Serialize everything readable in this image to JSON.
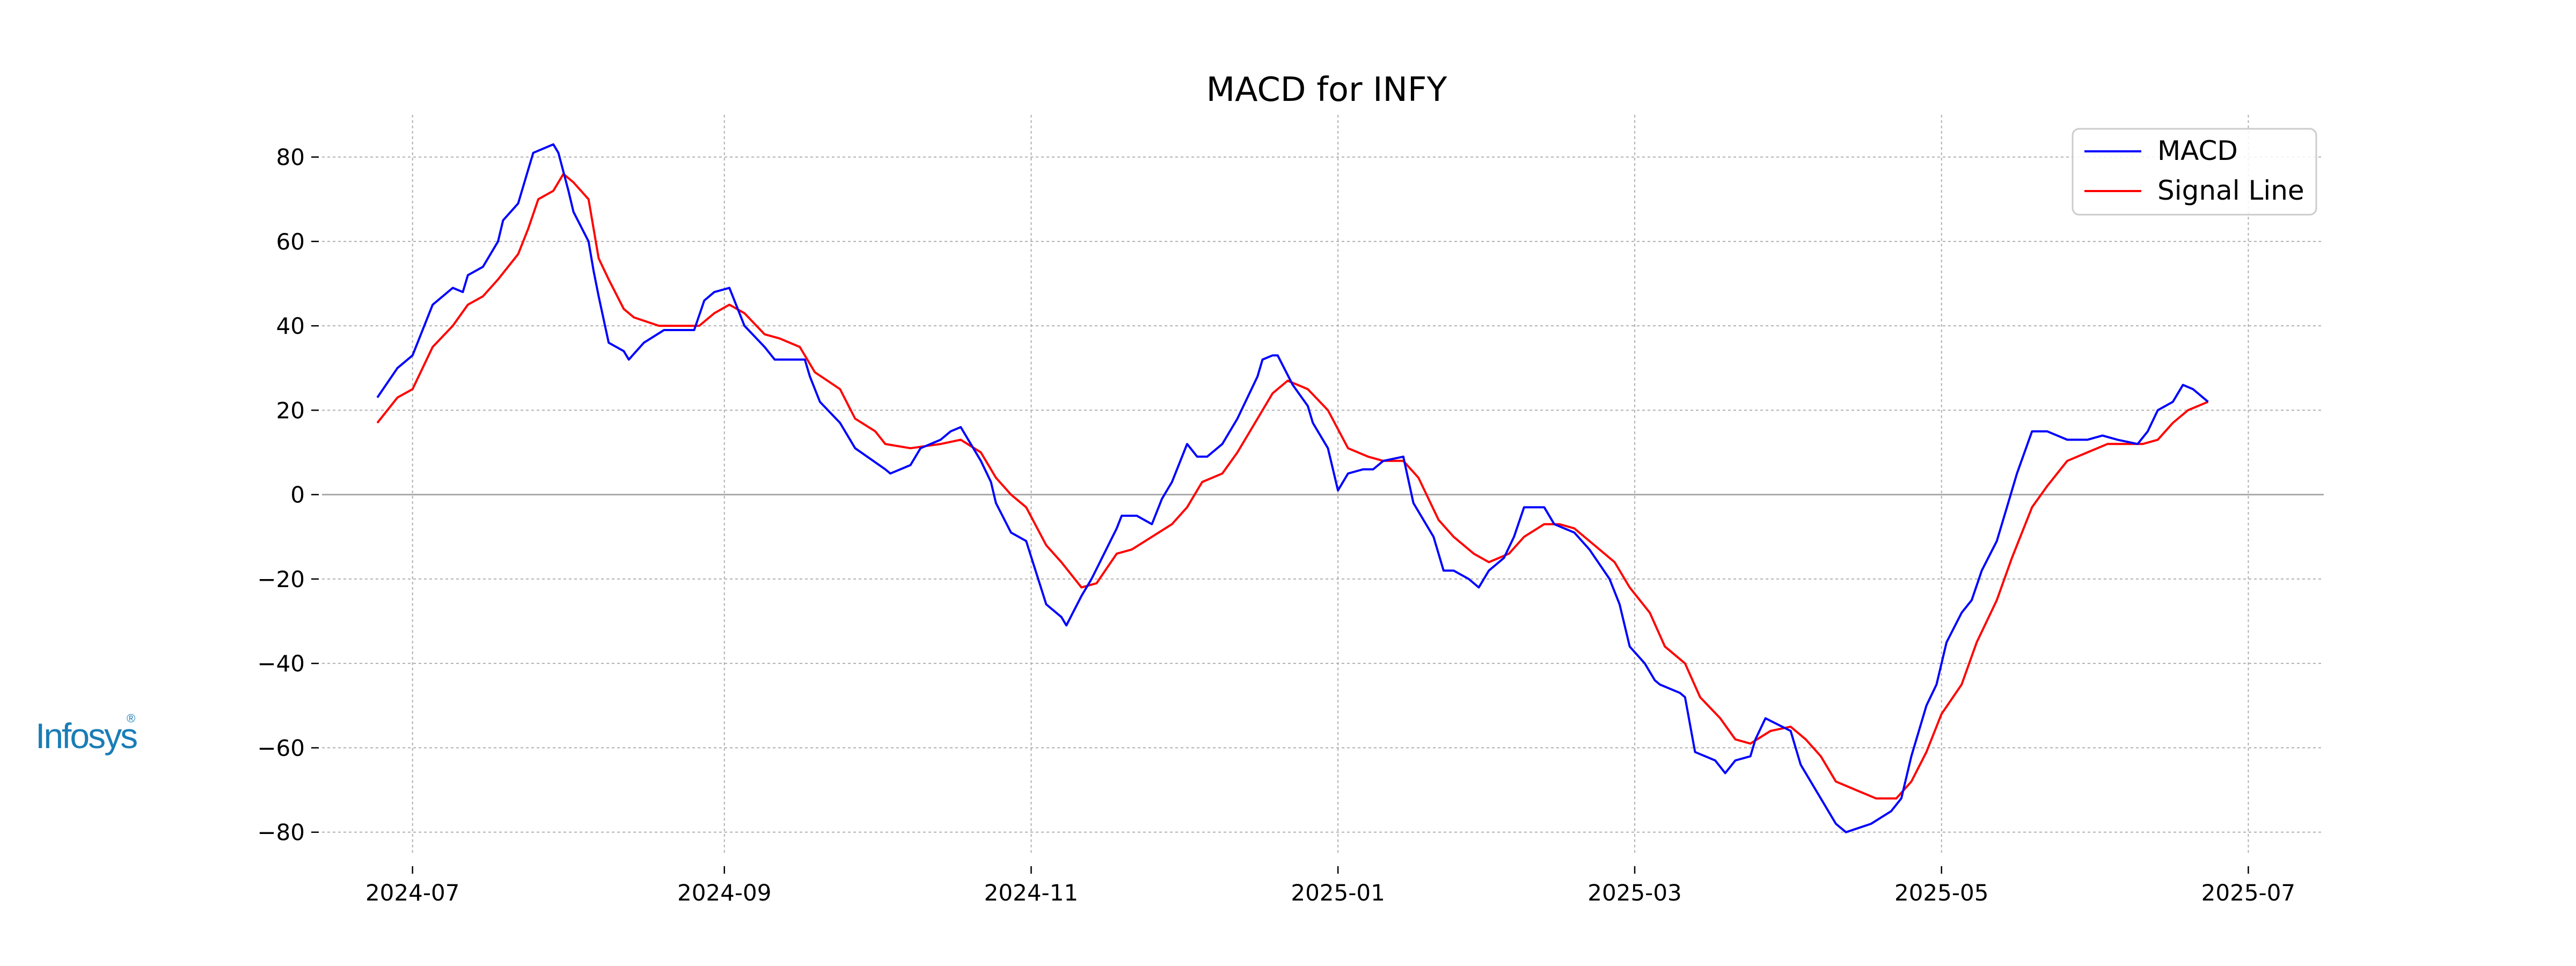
{
  "chart_data": {
    "type": "line",
    "title": "MACD for INFY",
    "xlabel": "",
    "ylabel": "",
    "x_axis": "date",
    "xlim": [
      "2024-06-13",
      "2025-07-16"
    ],
    "ylim": [
      -85,
      90
    ],
    "x_ticks": [
      "2024-07-01",
      "2024-09-01",
      "2024-11-01",
      "2025-01-01",
      "2025-03-01",
      "2025-05-01",
      "2025-07-01"
    ],
    "x_tick_labels": [
      "2024-07",
      "2024-09",
      "2024-11",
      "2025-01",
      "2025-03",
      "2025-05",
      "2025-07"
    ],
    "y_ticks": [
      80,
      60,
      40,
      20,
      0,
      -20,
      -40,
      -60,
      -80
    ],
    "y_tick_labels": [
      "80",
      "60",
      "40",
      "20",
      "0",
      "−20",
      "−40",
      "−60",
      "−80"
    ],
    "grid": true,
    "zero_line": true,
    "legend_position": "top-right",
    "series": [
      {
        "name": "MACD",
        "color": "#0000ff",
        "points": [
          [
            "2024-06-24",
            23
          ],
          [
            "2024-06-28",
            30
          ],
          [
            "2024-07-01",
            33
          ],
          [
            "2024-07-05",
            45
          ],
          [
            "2024-07-09",
            49
          ],
          [
            "2024-07-11",
            48
          ],
          [
            "2024-07-12",
            52
          ],
          [
            "2024-07-15",
            54
          ],
          [
            "2024-07-18",
            60
          ],
          [
            "2024-07-19",
            65
          ],
          [
            "2024-07-22",
            69
          ],
          [
            "2024-07-24",
            77
          ],
          [
            "2024-07-25",
            81
          ],
          [
            "2024-07-29",
            83
          ],
          [
            "2024-07-30",
            81
          ],
          [
            "2024-08-01",
            72
          ],
          [
            "2024-08-02",
            67
          ],
          [
            "2024-08-05",
            60
          ],
          [
            "2024-08-06",
            53
          ],
          [
            "2024-08-07",
            47
          ],
          [
            "2024-08-09",
            36
          ],
          [
            "2024-08-12",
            34
          ],
          [
            "2024-08-13",
            32
          ],
          [
            "2024-08-16",
            36
          ],
          [
            "2024-08-20",
            39
          ],
          [
            "2024-08-22",
            39
          ],
          [
            "2024-08-26",
            39
          ],
          [
            "2024-08-28",
            46
          ],
          [
            "2024-08-30",
            48
          ],
          [
            "2024-09-02",
            49
          ],
          [
            "2024-09-03",
            46
          ],
          [
            "2024-09-05",
            40
          ],
          [
            "2024-09-09",
            35
          ],
          [
            "2024-09-11",
            32
          ],
          [
            "2024-09-13",
            32
          ],
          [
            "2024-09-17",
            32
          ],
          [
            "2024-09-18",
            28
          ],
          [
            "2024-09-20",
            22
          ],
          [
            "2024-09-24",
            17
          ],
          [
            "2024-09-27",
            11
          ],
          [
            "2024-10-03",
            6
          ],
          [
            "2024-10-04",
            5
          ],
          [
            "2024-10-08",
            7
          ],
          [
            "2024-10-10",
            11
          ],
          [
            "2024-10-14",
            13
          ],
          [
            "2024-10-16",
            15
          ],
          [
            "2024-10-18",
            16
          ],
          [
            "2024-10-22",
            8
          ],
          [
            "2024-10-24",
            3
          ],
          [
            "2024-10-25",
            -2
          ],
          [
            "2024-10-28",
            -9
          ],
          [
            "2024-10-31",
            -11
          ],
          [
            "2024-11-04",
            -26
          ],
          [
            "2024-11-07",
            -29
          ],
          [
            "2024-11-08",
            -31
          ],
          [
            "2024-11-11",
            -24
          ],
          [
            "2024-11-13",
            -20
          ],
          [
            "2024-11-18",
            -8
          ],
          [
            "2024-11-19",
            -5
          ],
          [
            "2024-11-22",
            -5
          ],
          [
            "2024-11-25",
            -7
          ],
          [
            "2024-11-27",
            -1
          ],
          [
            "2024-11-29",
            3
          ],
          [
            "2024-12-02",
            12
          ],
          [
            "2024-12-04",
            9
          ],
          [
            "2024-12-06",
            9
          ],
          [
            "2024-12-09",
            12
          ],
          [
            "2024-12-12",
            18
          ],
          [
            "2024-12-16",
            28
          ],
          [
            "2024-12-17",
            32
          ],
          [
            "2024-12-19",
            33
          ],
          [
            "2024-12-20",
            33
          ],
          [
            "2024-12-23",
            26
          ],
          [
            "2024-12-26",
            21
          ],
          [
            "2024-12-27",
            17
          ],
          [
            "2024-12-30",
            11
          ],
          [
            "2025-01-01",
            1
          ],
          [
            "2025-01-03",
            5
          ],
          [
            "2025-01-06",
            6
          ],
          [
            "2025-01-08",
            6
          ],
          [
            "2025-01-10",
            8
          ],
          [
            "2025-01-14",
            9
          ],
          [
            "2025-01-16",
            -2
          ],
          [
            "2025-01-20",
            -10
          ],
          [
            "2025-01-22",
            -18
          ],
          [
            "2025-01-24",
            -18
          ],
          [
            "2025-01-27",
            -20
          ],
          [
            "2025-01-29",
            -22
          ],
          [
            "2025-01-31",
            -18
          ],
          [
            "2025-02-03",
            -15
          ],
          [
            "2025-02-05",
            -10
          ],
          [
            "2025-02-07",
            -3
          ],
          [
            "2025-02-11",
            -3
          ],
          [
            "2025-02-13",
            -7
          ],
          [
            "2025-02-17",
            -9
          ],
          [
            "2025-02-20",
            -13
          ],
          [
            "2025-02-24",
            -20
          ],
          [
            "2025-02-26",
            -26
          ],
          [
            "2025-02-28",
            -36
          ],
          [
            "2025-03-03",
            -40
          ],
          [
            "2025-03-05",
            -44
          ],
          [
            "2025-03-06",
            -45
          ],
          [
            "2025-03-10",
            -47
          ],
          [
            "2025-03-11",
            -48
          ],
          [
            "2025-03-13",
            -61
          ],
          [
            "2025-03-17",
            -63
          ],
          [
            "2025-03-19",
            -66
          ],
          [
            "2025-03-21",
            -63
          ],
          [
            "2025-03-24",
            -62
          ],
          [
            "2025-03-25",
            -58
          ],
          [
            "2025-03-27",
            -53
          ],
          [
            "2025-04-01",
            -56
          ],
          [
            "2025-04-03",
            -64
          ],
          [
            "2025-04-07",
            -72
          ],
          [
            "2025-04-10",
            -78
          ],
          [
            "2025-04-12",
            -80
          ],
          [
            "2025-04-17",
            -78
          ],
          [
            "2025-04-21",
            -75
          ],
          [
            "2025-04-23",
            -72
          ],
          [
            "2025-04-25",
            -62
          ],
          [
            "2025-04-28",
            -50
          ],
          [
            "2025-04-30",
            -45
          ],
          [
            "2025-05-02",
            -35
          ],
          [
            "2025-05-05",
            -28
          ],
          [
            "2025-05-07",
            -25
          ],
          [
            "2025-05-09",
            -18
          ],
          [
            "2025-05-12",
            -11
          ],
          [
            "2025-05-14",
            -3
          ],
          [
            "2025-05-16",
            5
          ],
          [
            "2025-05-19",
            15
          ],
          [
            "2025-05-22",
            15
          ],
          [
            "2025-05-26",
            13
          ],
          [
            "2025-05-30",
            13
          ],
          [
            "2025-06-02",
            14
          ],
          [
            "2025-06-05",
            13
          ],
          [
            "2025-06-09",
            12
          ],
          [
            "2025-06-11",
            15
          ],
          [
            "2025-06-13",
            20
          ],
          [
            "2025-06-16",
            22
          ],
          [
            "2025-06-18",
            26
          ],
          [
            "2025-06-20",
            25
          ],
          [
            "2025-06-23",
            22
          ]
        ]
      },
      {
        "name": "Signal Line",
        "color": "#ff0000",
        "points": [
          [
            "2024-06-24",
            17
          ],
          [
            "2024-06-28",
            23
          ],
          [
            "2024-07-01",
            25
          ],
          [
            "2024-07-05",
            35
          ],
          [
            "2024-07-09",
            40
          ],
          [
            "2024-07-12",
            45
          ],
          [
            "2024-07-15",
            47
          ],
          [
            "2024-07-18",
            51
          ],
          [
            "2024-07-22",
            57
          ],
          [
            "2024-07-24",
            63
          ],
          [
            "2024-07-26",
            70
          ],
          [
            "2024-07-29",
            72
          ],
          [
            "2024-07-31",
            76
          ],
          [
            "2024-08-02",
            74
          ],
          [
            "2024-08-05",
            70
          ],
          [
            "2024-08-07",
            56
          ],
          [
            "2024-08-09",
            51
          ],
          [
            "2024-08-12",
            44
          ],
          [
            "2024-08-14",
            42
          ],
          [
            "2024-08-19",
            40
          ],
          [
            "2024-08-23",
            40
          ],
          [
            "2024-08-27",
            40
          ],
          [
            "2024-08-30",
            43
          ],
          [
            "2024-09-02",
            45
          ],
          [
            "2024-09-05",
            43
          ],
          [
            "2024-09-09",
            38
          ],
          [
            "2024-09-12",
            37
          ],
          [
            "2024-09-16",
            35
          ],
          [
            "2024-09-19",
            29
          ],
          [
            "2024-09-24",
            25
          ],
          [
            "2024-09-27",
            18
          ],
          [
            "2024-10-01",
            15
          ],
          [
            "2024-10-03",
            12
          ],
          [
            "2024-10-08",
            11
          ],
          [
            "2024-10-14",
            12
          ],
          [
            "2024-10-18",
            13
          ],
          [
            "2024-10-22",
            10
          ],
          [
            "2024-10-25",
            4
          ],
          [
            "2024-10-28",
            0
          ],
          [
            "2024-10-31",
            -3
          ],
          [
            "2024-11-04",
            -12
          ],
          [
            "2024-11-07",
            -16
          ],
          [
            "2024-11-11",
            -22
          ],
          [
            "2024-11-14",
            -21
          ],
          [
            "2024-11-18",
            -14
          ],
          [
            "2024-11-21",
            -13
          ],
          [
            "2024-11-25",
            -10
          ],
          [
            "2024-11-29",
            -7
          ],
          [
            "2024-12-02",
            -3
          ],
          [
            "2024-12-05",
            3
          ],
          [
            "2024-12-09",
            5
          ],
          [
            "2024-12-12",
            10
          ],
          [
            "2024-12-16",
            18
          ],
          [
            "2024-12-19",
            24
          ],
          [
            "2024-12-22",
            27
          ],
          [
            "2024-12-26",
            25
          ],
          [
            "2024-12-30",
            20
          ],
          [
            "2025-01-03",
            11
          ],
          [
            "2025-01-07",
            9
          ],
          [
            "2025-01-10",
            8
          ],
          [
            "2025-01-14",
            8
          ],
          [
            "2025-01-17",
            4
          ],
          [
            "2025-01-21",
            -6
          ],
          [
            "2025-01-24",
            -10
          ],
          [
            "2025-01-28",
            -14
          ],
          [
            "2025-01-31",
            -16
          ],
          [
            "2025-02-04",
            -14
          ],
          [
            "2025-02-07",
            -10
          ],
          [
            "2025-02-11",
            -7
          ],
          [
            "2025-02-14",
            -7
          ],
          [
            "2025-02-17",
            -8
          ],
          [
            "2025-02-21",
            -12
          ],
          [
            "2025-02-25",
            -16
          ],
          [
            "2025-02-28",
            -22
          ],
          [
            "2025-03-04",
            -28
          ],
          [
            "2025-03-07",
            -36
          ],
          [
            "2025-03-11",
            -40
          ],
          [
            "2025-03-14",
            -48
          ],
          [
            "2025-03-18",
            -53
          ],
          [
            "2025-03-21",
            -58
          ],
          [
            "2025-03-24",
            -59
          ],
          [
            "2025-03-28",
            -56
          ],
          [
            "2025-04-01",
            -55
          ],
          [
            "2025-04-04",
            -58
          ],
          [
            "2025-04-07",
            -62
          ],
          [
            "2025-04-10",
            -68
          ],
          [
            "2025-04-14",
            -70
          ],
          [
            "2025-04-18",
            -72
          ],
          [
            "2025-04-22",
            -72
          ],
          [
            "2025-04-25",
            -68
          ],
          [
            "2025-04-28",
            -61
          ],
          [
            "2025-05-01",
            -52
          ],
          [
            "2025-05-05",
            -45
          ],
          [
            "2025-05-08",
            -35
          ],
          [
            "2025-05-12",
            -25
          ],
          [
            "2025-05-15",
            -15
          ],
          [
            "2025-05-19",
            -3
          ],
          [
            "2025-05-22",
            2
          ],
          [
            "2025-05-26",
            8
          ],
          [
            "2025-05-30",
            10
          ],
          [
            "2025-06-03",
            12
          ],
          [
            "2025-06-06",
            12
          ],
          [
            "2025-06-10",
            12
          ],
          [
            "2025-06-13",
            13
          ],
          [
            "2025-06-16",
            17
          ],
          [
            "2025-06-19",
            20
          ],
          [
            "2025-06-23",
            22
          ]
        ]
      }
    ]
  },
  "logo": {
    "text": "Infosys",
    "registered_mark": "®",
    "color": "#1a7db6"
  }
}
